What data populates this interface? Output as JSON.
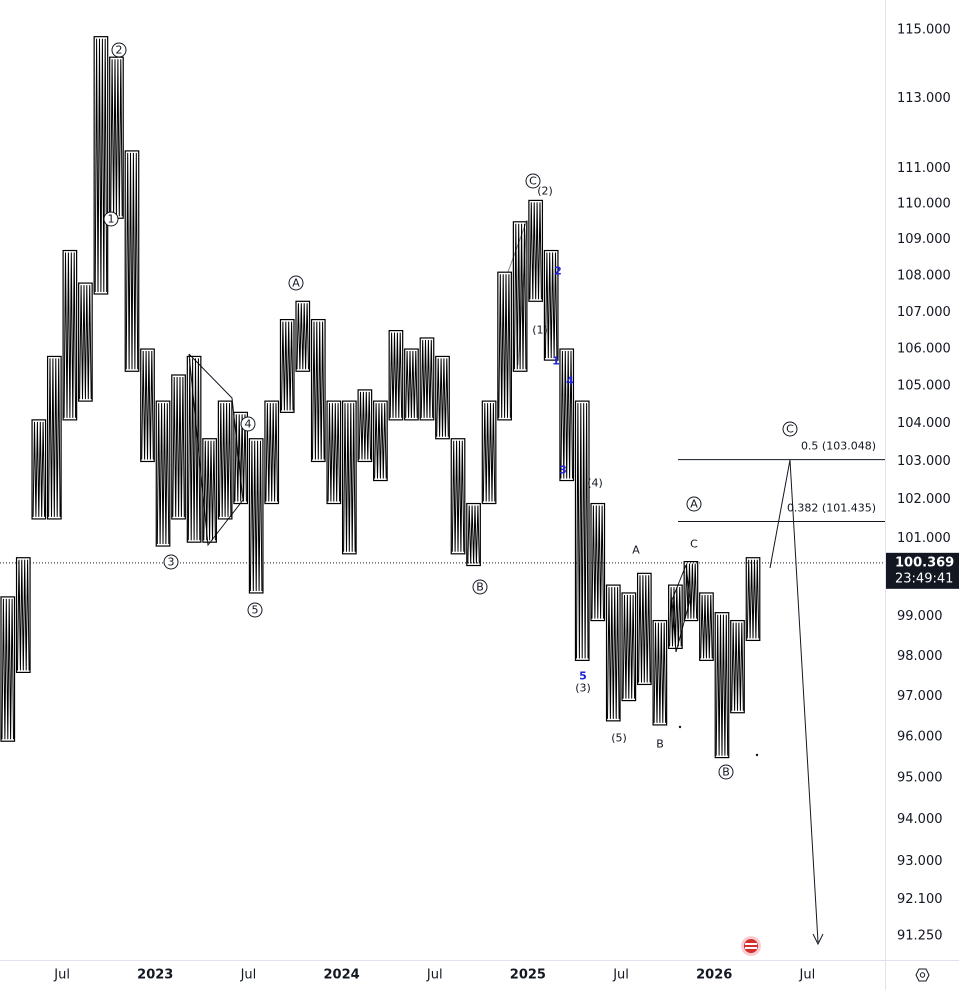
{
  "chart_data": {
    "type": "range",
    "x": [
      "2022-03",
      "2022-04",
      "2022-05",
      "2022-06",
      "2022-07",
      "2022-08",
      "2022-09",
      "2022-10",
      "2022-11",
      "2022-12",
      "2023-01",
      "2023-02",
      "2023-03",
      "2023-04",
      "2023-05",
      "2023-06",
      "2023-07",
      "2023-08",
      "2023-09",
      "2023-10",
      "2023-11",
      "2023-12",
      "2024-01",
      "2024-02",
      "2024-03",
      "2024-04",
      "2024-05",
      "2024-06",
      "2024-07",
      "2024-08",
      "2024-09",
      "2024-10",
      "2024-11",
      "2024-12",
      "2025-01",
      "2025-02",
      "2025-03",
      "2025-04",
      "2025-05",
      "2025-06",
      "2025-07",
      "2025-08",
      "2025-09",
      "2025-10",
      "2025-11",
      "2025-12",
      "2026-01",
      "2026-02",
      "2026-03"
    ],
    "high": [
      99.5,
      100.5,
      104.1,
      105.8,
      108.7,
      107.8,
      114.8,
      114.2,
      111.5,
      106,
      104.6,
      105.3,
      105.8,
      103.6,
      104.6,
      104.3,
      103.6,
      104.6,
      106.8,
      107.3,
      106.8,
      104.6,
      104.6,
      104.9,
      104.6,
      106.5,
      106,
      106.3,
      105.8,
      103.6,
      101.9,
      104.6,
      108.1,
      109.5,
      110.1,
      108.7,
      106,
      104.6,
      101.9,
      99.8,
      99.6,
      100.1,
      98.9,
      99.8,
      100.4,
      99.6,
      99.1,
      98.9,
      100.5
    ],
    "low": [
      95.9,
      97.6,
      101.5,
      101.5,
      104.1,
      104.6,
      107.5,
      109.6,
      105.4,
      103,
      100.8,
      101.5,
      100.9,
      100.9,
      101.5,
      101.9,
      99.6,
      101.9,
      104.3,
      105.4,
      103,
      101.9,
      100.6,
      103,
      102.5,
      104.1,
      104.1,
      104.1,
      103.6,
      100.6,
      100.3,
      101.9,
      104.1,
      105.4,
      107.3,
      105.7,
      102.5,
      97.9,
      98.9,
      96.4,
      96.9,
      97.3,
      96.3,
      98.2,
      98.9,
      97.9,
      95.5,
      96.6,
      98.4
    ],
    "color": "#000000",
    "log_scale": true,
    "xlim": [
      "2022-03",
      "2026-12"
    ],
    "xticks": [
      {
        "value": "2022-07",
        "label": "Jul"
      },
      {
        "value": "2023-01",
        "label": "2023"
      },
      {
        "value": "2023-07",
        "label": "Jul"
      },
      {
        "value": "2024-01",
        "label": "2024"
      },
      {
        "value": "2024-07",
        "label": "Jul"
      },
      {
        "value": "2025-01",
        "label": "2025"
      },
      {
        "value": "2025-07",
        "label": "Jul"
      },
      {
        "value": "2026-01",
        "label": "2026"
      },
      {
        "value": "2026-07",
        "label": "Jul"
      }
    ],
    "ylim": [
      90.69,
      115.88
    ],
    "yticks": [
      {
        "value": 115,
        "label": "115.000"
      },
      {
        "value": 113,
        "label": "113.000"
      },
      {
        "value": 111,
        "label": "111.000"
      },
      {
        "value": 110,
        "label": "110.000"
      },
      {
        "value": 109,
        "label": "109.000"
      },
      {
        "value": 108,
        "label": "108.000"
      },
      {
        "value": 107,
        "label": "107.000"
      },
      {
        "value": 106,
        "label": "106.000"
      },
      {
        "value": 105,
        "label": "105.000"
      },
      {
        "value": 104,
        "label": "104.000"
      },
      {
        "value": 103,
        "label": "103.000"
      },
      {
        "value": 102,
        "label": "102.000"
      },
      {
        "value": 101,
        "label": "101.000"
      },
      {
        "value": 99,
        "label": "99.000"
      },
      {
        "value": 98,
        "label": "98.000"
      },
      {
        "value": 97,
        "label": "97.000"
      },
      {
        "value": 96,
        "label": "96.000"
      },
      {
        "value": 95,
        "label": "95.000"
      },
      {
        "value": 94,
        "label": "94.000"
      },
      {
        "value": 93,
        "label": "93.000"
      },
      {
        "value": 92.1,
        "label": "92.100"
      },
      {
        "value": 91.25,
        "label": "91.250"
      }
    ],
    "last_price": {
      "value": 100.369,
      "label": "100.369"
    },
    "countdown": "23:49:41",
    "fib_levels": [
      {
        "value": 103.048,
        "label": "0.5 (103.048)"
      },
      {
        "value": 101.435,
        "label": "0.382 (101.435)"
      }
    ],
    "annotations": [
      "2",
      "1",
      "3",
      "4",
      "5",
      "A",
      "B",
      "C",
      "(2)",
      "2",
      "(1)",
      "1",
      "4",
      "3",
      "(4)",
      "5",
      "(3)",
      "(5)",
      "A",
      "B",
      "C",
      "B",
      "A",
      "C"
    ]
  }
}
